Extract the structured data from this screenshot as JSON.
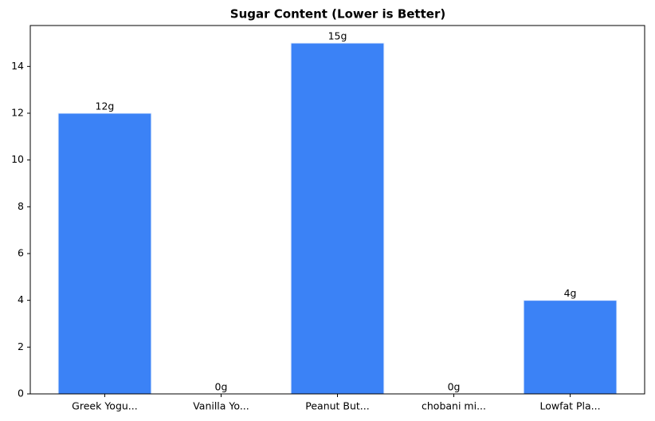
{
  "chart_data": {
    "type": "bar",
    "title": "Sugar Content (Lower is Better)",
    "categories": [
      "Greek Yogu...",
      "Vanilla Yo...",
      "Peanut But...",
      "chobani mi...",
      "Lowfat Pla..."
    ],
    "values": [
      12,
      0,
      15,
      0,
      4
    ],
    "value_labels": [
      "12g",
      "0g",
      "15g",
      "0g",
      "4g"
    ],
    "color": "#3b82f6",
    "ylim": [
      0,
      15.75
    ],
    "yticks": [
      0,
      2,
      4,
      6,
      8,
      10,
      12,
      14
    ],
    "grid": false
  }
}
